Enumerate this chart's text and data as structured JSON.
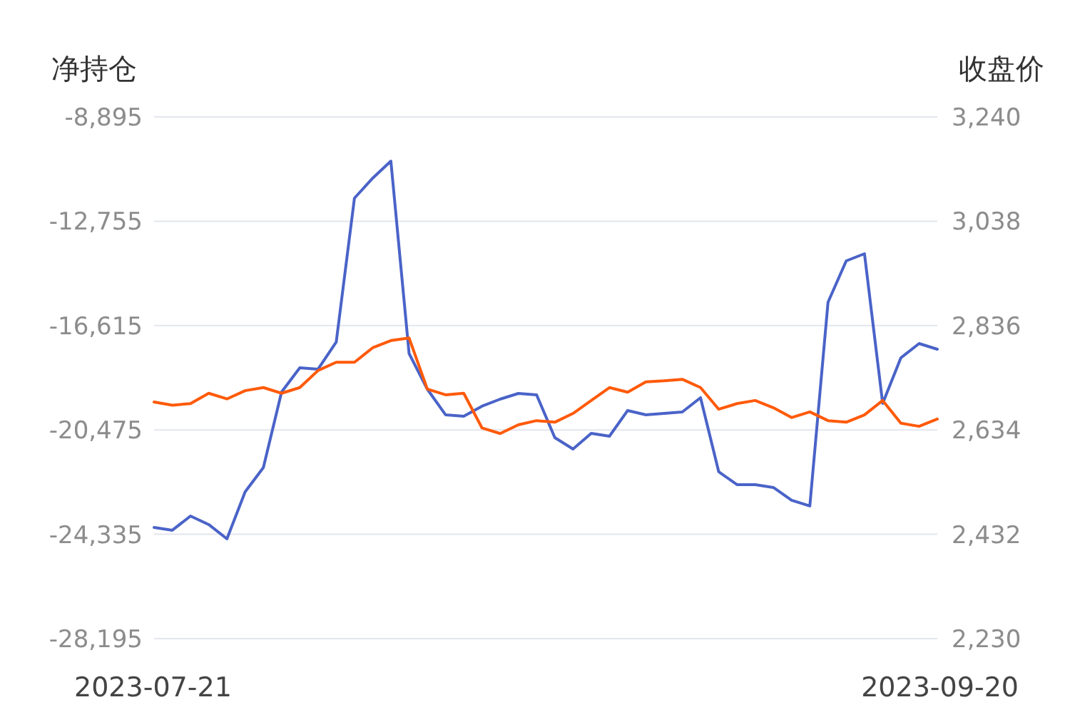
{
  "chart_data": {
    "type": "line",
    "ylabel": "净持仓",
    "y2label": "收盘价",
    "categories": [
      "2023-07-21",
      null,
      null,
      null,
      null,
      null,
      null,
      null,
      null,
      null,
      null,
      null,
      null,
      null,
      null,
      null,
      null,
      null,
      null,
      null,
      null,
      null,
      null,
      null,
      null,
      null,
      null,
      null,
      null,
      null,
      null,
      null,
      null,
      null,
      null,
      null,
      null,
      null,
      null,
      null,
      null,
      null,
      null,
      "2023-09-20"
    ],
    "series": [
      {
        "color": "#4a63c8",
        "axis": "y",
        "values": [
          -24081,
          -24186,
          -23659,
          -23975,
          -24503,
          -22763,
          -21867,
          -19072,
          -18176,
          -18228,
          -17226,
          -11901,
          -11162,
          -10530,
          -17648,
          -18966,
          -19915,
          -19968,
          -19599,
          -19336,
          -19125,
          -19177,
          -20759,
          -21181,
          -20601,
          -20707,
          -19757,
          -19915,
          -19863,
          -19810,
          -19283,
          -22025,
          -22499,
          -22499,
          -22605,
          -23079,
          -23290,
          -15750,
          -14221,
          -13957,
          -19494,
          -17806,
          -17279,
          -17490
        ]
      },
      {
        "color": "#ff5a0a",
        "axis": "y2",
        "values": [
          2688,
          2682,
          2685,
          2705,
          2694,
          2710,
          2716,
          2705,
          2716,
          2749,
          2765,
          2765,
          2793,
          2807,
          2812,
          2713,
          2702,
          2705,
          2638,
          2627,
          2644,
          2652,
          2649,
          2666,
          2691,
          2716,
          2707,
          2727,
          2729,
          2732,
          2716,
          2674,
          2685,
          2691,
          2677,
          2658,
          2669,
          2652,
          2649,
          2663,
          2691,
          2647,
          2641,
          2655
        ]
      }
    ],
    "ylim": [
      -28195,
      -8895
    ],
    "yticks": [
      {
        "value": -28195,
        "label": "-28,195"
      },
      {
        "value": -24335,
        "label": "-24,335"
      },
      {
        "value": -20475,
        "label": "-20,475"
      },
      {
        "value": -16615,
        "label": "-16,615"
      },
      {
        "value": -12755,
        "label": "-12,755"
      },
      {
        "value": -8895,
        "label": "-8,895"
      }
    ],
    "y2lim": [
      2230,
      3240
    ],
    "y2ticks": [
      {
        "value": 2230,
        "label": "2,230"
      },
      {
        "value": 2432,
        "label": "2,432"
      },
      {
        "value": 2634,
        "label": "2,634"
      },
      {
        "value": 2836,
        "label": "2,836"
      },
      {
        "value": 3038,
        "label": "3,038"
      },
      {
        "value": 3240,
        "label": "3,240"
      }
    ],
    "grid": "y",
    "marker": "none",
    "line_style": "solid"
  }
}
